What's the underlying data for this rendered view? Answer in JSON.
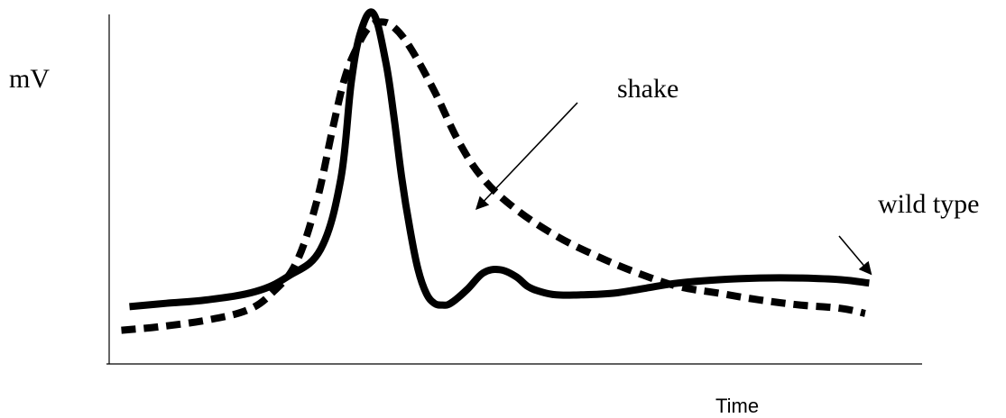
{
  "chart_data": {
    "type": "line",
    "title": "",
    "xlabel": "Time",
    "ylabel": "mV",
    "xlim": [
      0,
      100
    ],
    "ylim": [
      0,
      100
    ],
    "grid": false,
    "legend": "none",
    "series": [
      {
        "name": "wild type",
        "style": "solid",
        "color": "#000000",
        "x": [
          2.5,
          7,
          12,
          18,
          22,
          26,
          28.5,
          29.8,
          31,
          32.5,
          34,
          35,
          36,
          37,
          38,
          39,
          40,
          41,
          42,
          44,
          46,
          48,
          50,
          51.5,
          53,
          55,
          58,
          62,
          66,
          70,
          75,
          80,
          85,
          90,
          93.5
        ],
        "y": [
          17,
          18,
          19,
          21.5,
          26,
          34,
          55,
          84,
          99,
          104,
          90,
          74,
          55,
          40,
          28,
          21,
          18,
          17.5,
          18,
          22,
          27,
          28,
          26,
          23,
          21.5,
          20.5,
          20.5,
          21,
          22.5,
          24,
          25,
          25.5,
          25.5,
          25,
          24
        ]
      },
      {
        "name": "shake",
        "style": "dashed",
        "color": "#000000",
        "x": [
          1.5,
          6,
          12,
          17,
          20,
          23,
          25.5,
          27.5,
          29,
          30.5,
          32,
          33.5,
          35,
          37,
          40,
          43,
          46,
          50,
          55,
          60,
          65,
          70,
          75,
          80,
          85,
          90,
          93
        ],
        "y": [
          10,
          11,
          13,
          16,
          21,
          30,
          48,
          70,
          85,
          94,
          100,
          101.5,
          100,
          94,
          81,
          66,
          55,
          46,
          38,
          32,
          27,
          23,
          21,
          19,
          17.5,
          16.5,
          15
        ]
      }
    ],
    "annotations": [
      {
        "text": "shake",
        "target_series": "shake"
      },
      {
        "text": "wild type",
        "target_series": "wild type"
      }
    ]
  }
}
